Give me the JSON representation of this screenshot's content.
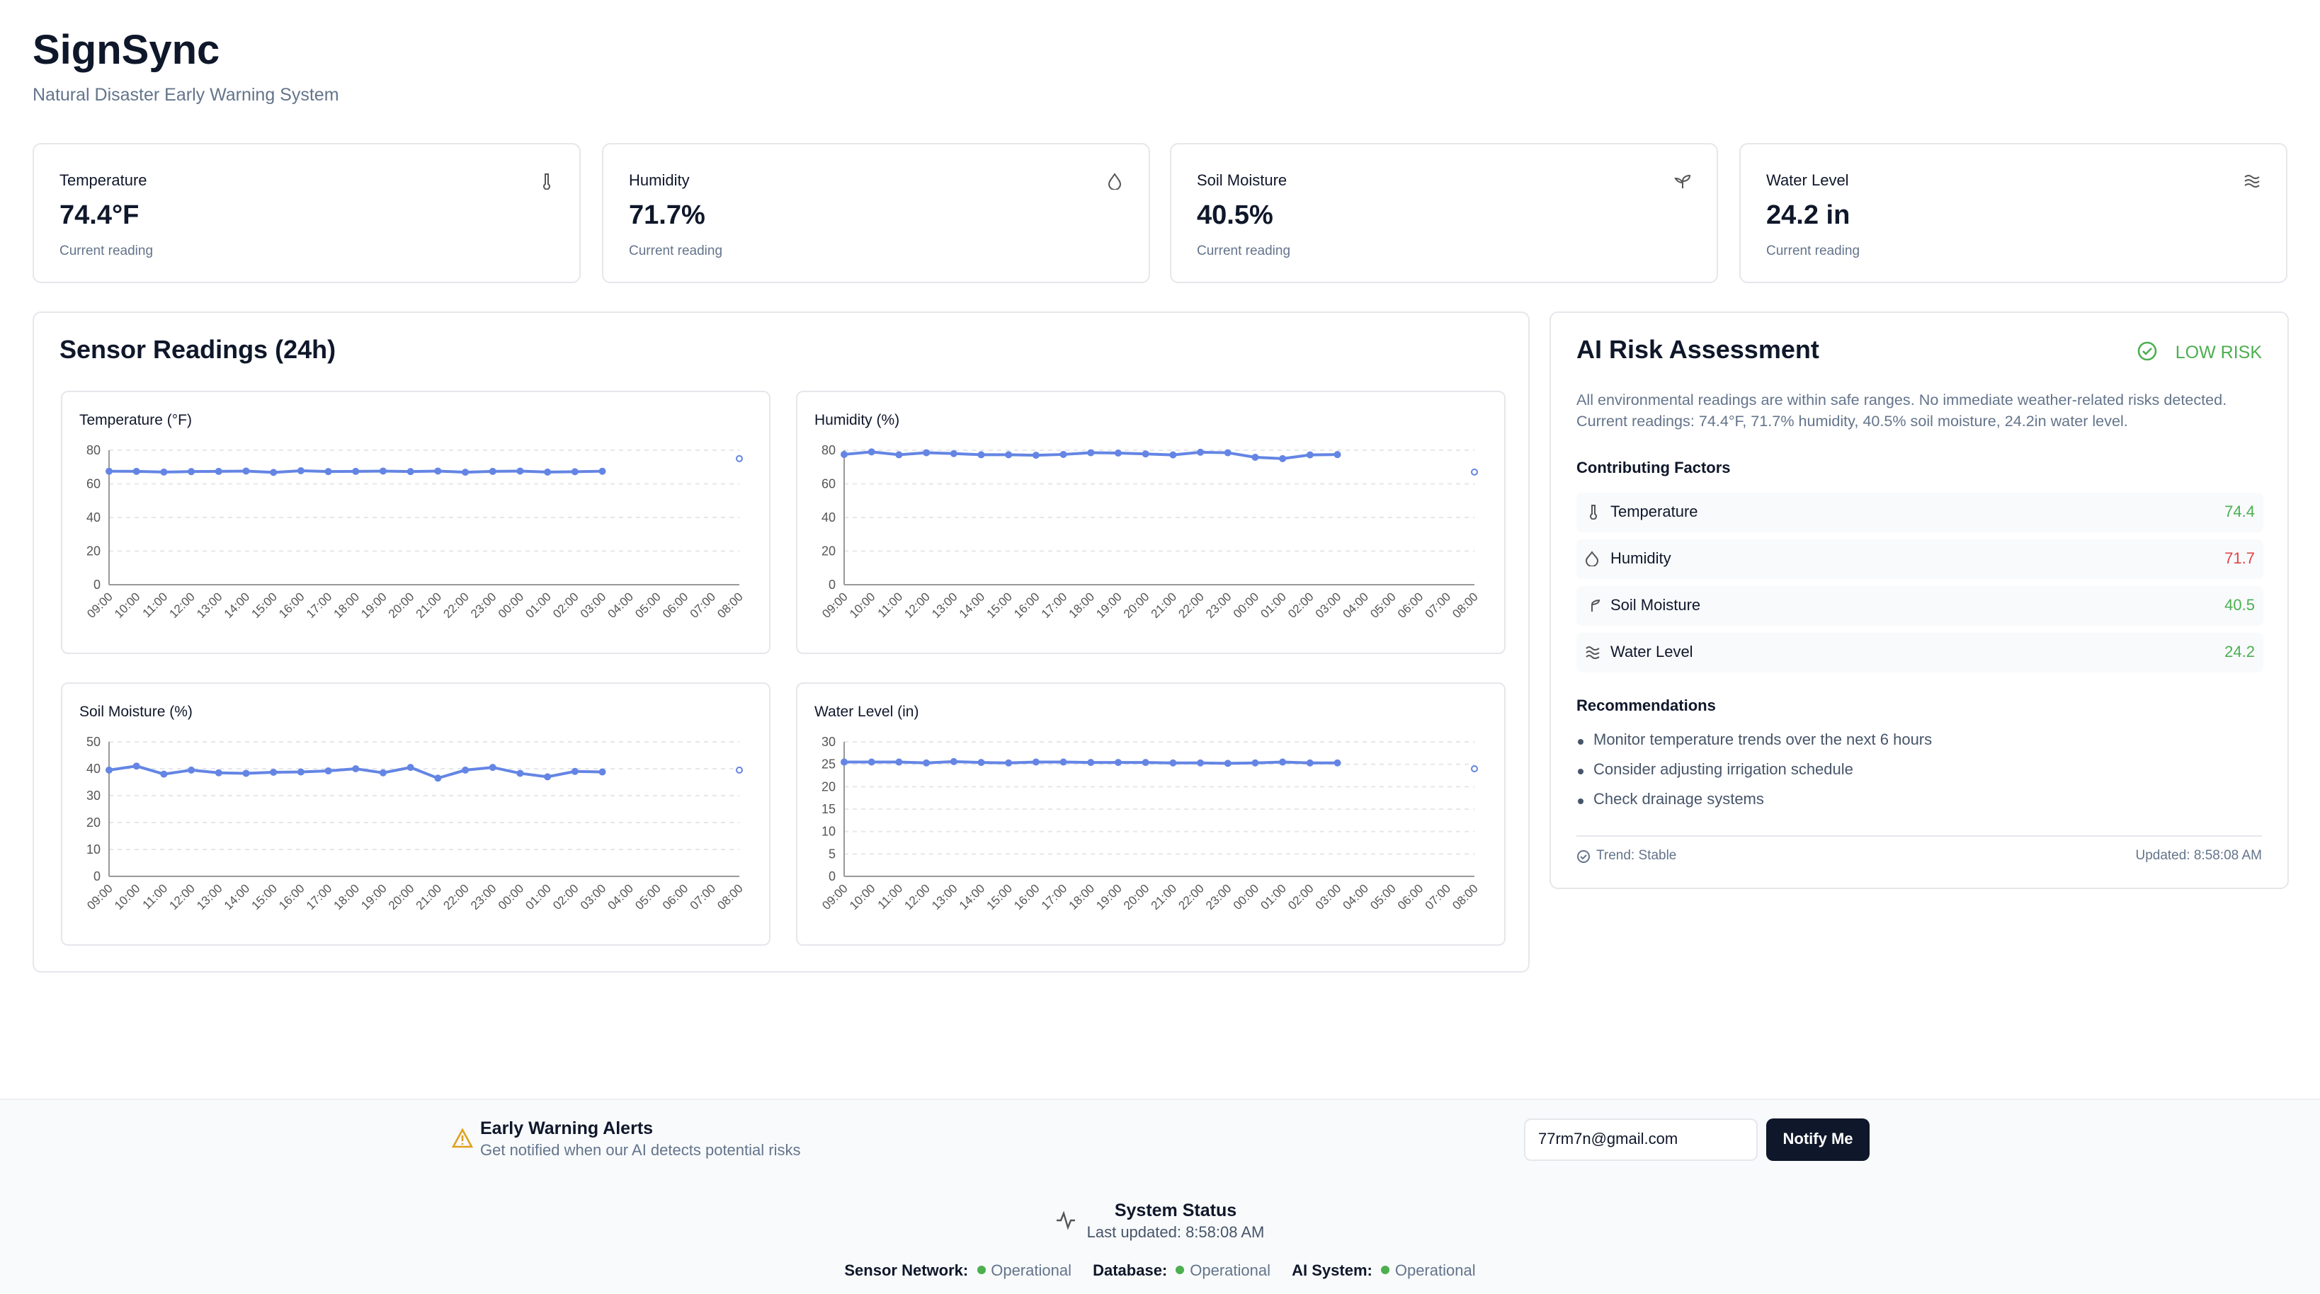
{
  "header": {
    "title": "SignSync",
    "subtitle": "Natural Disaster Early Warning System"
  },
  "cards": [
    {
      "label": "Temperature",
      "value": "74.4°F",
      "note": "Current reading"
    },
    {
      "label": "Humidity",
      "value": "71.7%",
      "note": "Current reading"
    },
    {
      "label": "Soil Moisture",
      "value": "40.5%",
      "note": "Current reading"
    },
    {
      "label": "Water Level",
      "value": "24.2 in",
      "note": "Current reading"
    }
  ],
  "sensor_panel": {
    "title": "Sensor Readings (24h)"
  },
  "chart_data": [
    {
      "type": "line",
      "title": "Temperature (°F)",
      "color": "#6485e4",
      "categories": [
        "09:00",
        "10:00",
        "11:00",
        "12:00",
        "13:00",
        "14:00",
        "15:00",
        "16:00",
        "17:00",
        "18:00",
        "19:00",
        "20:00",
        "21:00",
        "22:00",
        "23:00",
        "00:00",
        "01:00",
        "02:00",
        "03:00",
        "04:00",
        "05:00",
        "06:00",
        "07:00",
        "08:00"
      ],
      "values": [
        67.5,
        67.4,
        67,
        67.3,
        67.4,
        67.6,
        66.8,
        67.8,
        67.3,
        67.4,
        67.6,
        67.3,
        67.6,
        66.9,
        67.4,
        67.6,
        67,
        67.2,
        67.5,
        null,
        null,
        null,
        null,
        75
      ],
      "ylim": [
        0,
        80
      ],
      "yticks": [
        0,
        20,
        40,
        60,
        80
      ],
      "grid": true
    },
    {
      "type": "line",
      "title": "Humidity (%)",
      "color": "#6485e4",
      "categories": [
        "09:00",
        "10:00",
        "11:00",
        "12:00",
        "13:00",
        "14:00",
        "15:00",
        "16:00",
        "17:00",
        "18:00",
        "19:00",
        "20:00",
        "21:00",
        "22:00",
        "23:00",
        "00:00",
        "01:00",
        "02:00",
        "03:00",
        "04:00",
        "05:00",
        "06:00",
        "07:00",
        "08:00"
      ],
      "values": [
        77.5,
        79,
        77.3,
        78.5,
        78,
        77.3,
        77.3,
        77,
        77.5,
        78.5,
        78.3,
        77.8,
        77.2,
        78.8,
        78.5,
        75.8,
        75,
        77.2,
        77.4,
        null,
        null,
        null,
        null,
        67
      ],
      "ylim": [
        0,
        80
      ],
      "yticks": [
        0,
        20,
        40,
        60,
        80
      ],
      "grid": true
    },
    {
      "type": "line",
      "title": "Soil Moisture (%)",
      "color": "#6485e4",
      "categories": [
        "09:00",
        "10:00",
        "11:00",
        "12:00",
        "13:00",
        "14:00",
        "15:00",
        "16:00",
        "17:00",
        "18:00",
        "19:00",
        "20:00",
        "21:00",
        "22:00",
        "23:00",
        "00:00",
        "01:00",
        "02:00",
        "03:00",
        "04:00",
        "05:00",
        "06:00",
        "07:00",
        "08:00"
      ],
      "values": [
        39.5,
        41,
        38,
        39.5,
        38.5,
        38.3,
        38.7,
        38.8,
        39.2,
        40,
        38.5,
        40.5,
        36.5,
        39.5,
        40.5,
        38.3,
        37,
        39,
        38.8,
        null,
        null,
        null,
        null,
        39.5
      ],
      "ylim": [
        0,
        50
      ],
      "yticks": [
        0,
        10,
        20,
        30,
        40,
        50
      ],
      "grid": true
    },
    {
      "type": "line",
      "title": "Water Level (in)",
      "color": "#6485e4",
      "categories": [
        "09:00",
        "10:00",
        "11:00",
        "12:00",
        "13:00",
        "14:00",
        "15:00",
        "16:00",
        "17:00",
        "18:00",
        "19:00",
        "20:00",
        "21:00",
        "22:00",
        "23:00",
        "00:00",
        "01:00",
        "02:00",
        "03:00",
        "04:00",
        "05:00",
        "06:00",
        "07:00",
        "08:00"
      ],
      "values": [
        25.5,
        25.5,
        25.5,
        25.3,
        25.6,
        25.4,
        25.3,
        25.5,
        25.5,
        25.4,
        25.4,
        25.4,
        25.3,
        25.3,
        25.2,
        25.3,
        25.5,
        25.3,
        25.3,
        null,
        null,
        null,
        null,
        24
      ],
      "ylim": [
        0,
        30
      ],
      "yticks": [
        0,
        5,
        10,
        15,
        20,
        25,
        30
      ],
      "grid": true
    }
  ],
  "risk": {
    "title": "AI Risk Assessment",
    "badge": "LOW RISK",
    "description": "All environmental readings are within safe ranges. No immediate weather-related risks detected. Current readings: 74.4°F, 71.7% humidity, 40.5% soil moisture, 24.2in water level.",
    "factors_title": "Contributing Factors",
    "factors": [
      {
        "name": "Temperature",
        "value": 74.4,
        "color": "#4caf50"
      },
      {
        "name": "Humidity",
        "value": 71.7,
        "color": "#e04444"
      },
      {
        "name": "Soil Moisture",
        "value": 40.5,
        "color": "#4caf50"
      },
      {
        "name": "Water Level",
        "value": 24.2,
        "color": "#4caf50"
      }
    ],
    "recommendations_title": "Recommendations",
    "recommendations": [
      "Monitor temperature trends over the next 6 hours",
      "Consider adjusting irrigation schedule",
      "Check drainage systems"
    ],
    "trend": "Trend: Stable",
    "updated": "Updated: 8:58:08 AM"
  },
  "alerts": {
    "title": "Early Warning Alerts",
    "subtitle": "Get notified when our AI detects potential risks",
    "email": "77rm7n@gmail.com",
    "button": "Notify Me"
  },
  "status": {
    "title": "System Status",
    "updated": "Last updated: 8:58:08 AM",
    "items": [
      {
        "label": "Sensor Network:",
        "state": "Operational"
      },
      {
        "label": "Database:",
        "state": "Operational"
      },
      {
        "label": "AI System:",
        "state": "Operational"
      }
    ]
  }
}
